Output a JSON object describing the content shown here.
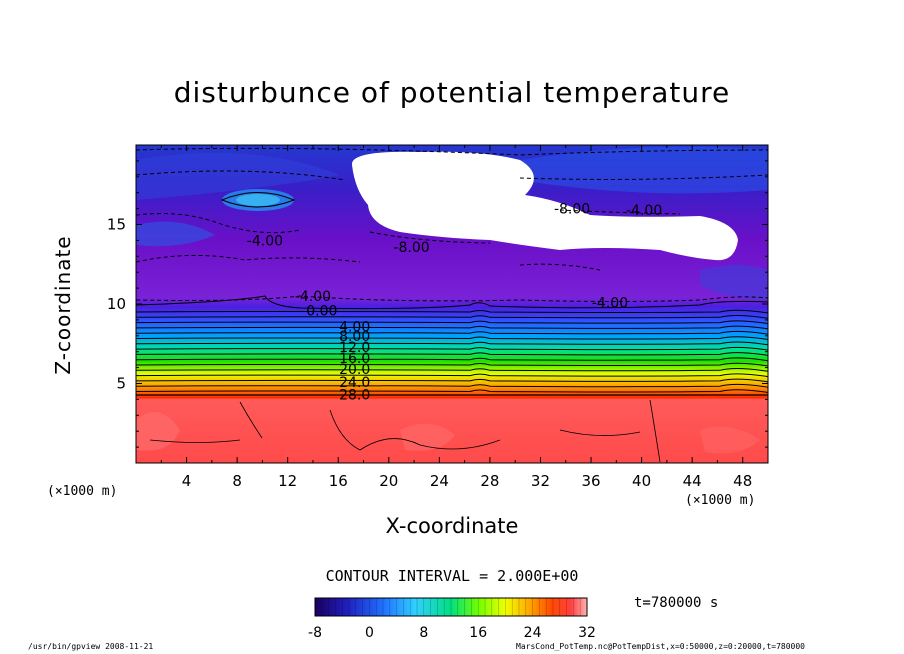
{
  "chart_data": {
    "type": "heatmap",
    "title": "disturbunce of potential temperature",
    "xlabel": "X-coordinate",
    "ylabel": "Z-coordinate",
    "x_unit": "(×1000 m)",
    "y_unit": "(×1000 m)",
    "xlim": [
      0,
      50
    ],
    "ylim": [
      0,
      20
    ],
    "x_ticks": [
      4,
      8,
      12,
      16,
      20,
      24,
      28,
      32,
      36,
      40,
      44,
      48
    ],
    "y_ticks": [
      5,
      10,
      15
    ],
    "contour_interval_text": "CONTOUR INTERVAL = 2.000E+00",
    "time_text": "t=780000 s",
    "colorbar": {
      "min": -8,
      "max": 32,
      "ticks": [
        -8,
        0,
        8,
        16,
        24,
        32
      ]
    },
    "contour_labels": [
      {
        "text": "-8.00",
        "x": 34.5,
        "z": 16.0
      },
      {
        "text": "-4.00",
        "x": 40.2,
        "z": 15.9
      },
      {
        "text": "-4.00",
        "x": 10.2,
        "z": 14.0
      },
      {
        "text": "-8.00",
        "x": 21.8,
        "z": 13.6
      },
      {
        "text": "-4.00",
        "x": 14.0,
        "z": 10.5
      },
      {
        "text": "-4.00",
        "x": 37.5,
        "z": 10.1
      },
      {
        "text": "0.00",
        "x": 14.7,
        "z": 9.6
      },
      {
        "text": "4.00",
        "x": 17.3,
        "z": 8.6
      },
      {
        "text": "8.00",
        "x": 17.3,
        "z": 8.0
      },
      {
        "text": "12.0",
        "x": 17.3,
        "z": 7.3
      },
      {
        "text": "16.0",
        "x": 17.3,
        "z": 6.6
      },
      {
        "text": "20.0",
        "x": 17.3,
        "z": 5.9
      },
      {
        "text": "24.0",
        "x": 17.3,
        "z": 5.1
      },
      {
        "text": "28.0",
        "x": 17.3,
        "z": 4.3
      }
    ]
  },
  "footer": {
    "left": "/usr/bin/gpview  2008-11-21",
    "right": "MarsCond_PotTemp.nc@PotTempDist,x=0:50000,z=0:20000,t=780000"
  }
}
